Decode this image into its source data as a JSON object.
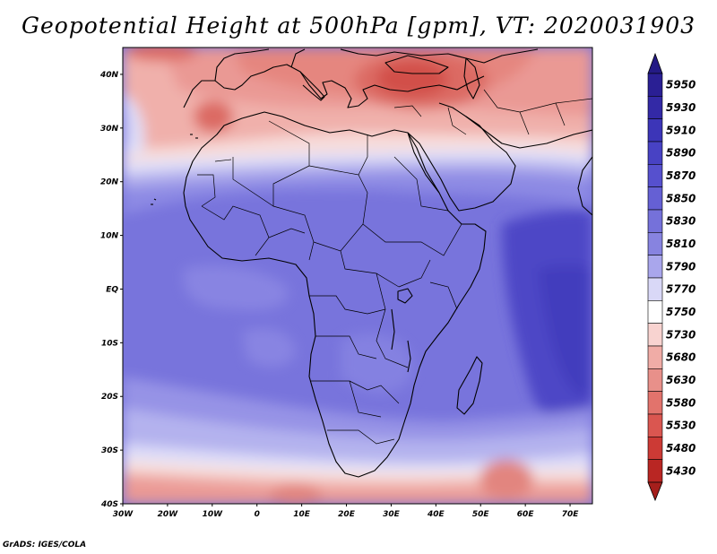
{
  "title": "Geopotential Height at 500hPa [gpm], VT: 2020031903",
  "credit": "GrADS: IGES/COLA",
  "map": {
    "variable": "Geopotential Height",
    "level": "500hPa",
    "units": "gpm",
    "valid_time": "2020031903",
    "region": "Africa and surrounding oceans",
    "lon_range": [
      -30,
      75
    ],
    "lat_range": [
      -40,
      45
    ]
  },
  "axes": {
    "x_ticks": [
      {
        "value": -30,
        "label": "30W"
      },
      {
        "value": -20,
        "label": "20W"
      },
      {
        "value": -10,
        "label": "10W"
      },
      {
        "value": 0,
        "label": "0"
      },
      {
        "value": 10,
        "label": "10E"
      },
      {
        "value": 20,
        "label": "20E"
      },
      {
        "value": 30,
        "label": "30E"
      },
      {
        "value": 40,
        "label": "40E"
      },
      {
        "value": 50,
        "label": "50E"
      },
      {
        "value": 60,
        "label": "60E"
      },
      {
        "value": 70,
        "label": "70E"
      }
    ],
    "y_ticks": [
      {
        "value": 40,
        "label": "40N"
      },
      {
        "value": 30,
        "label": "30N"
      },
      {
        "value": 20,
        "label": "20N"
      },
      {
        "value": 10,
        "label": "10N"
      },
      {
        "value": 0,
        "label": "EQ"
      },
      {
        "value": -10,
        "label": "10S"
      },
      {
        "value": -20,
        "label": "20S"
      },
      {
        "value": -30,
        "label": "30S"
      },
      {
        "value": -40,
        "label": "40S"
      }
    ]
  },
  "colorbar": {
    "levels": [
      {
        "label": "5950",
        "color": "#2a1f94"
      },
      {
        "label": "5930",
        "color": "#3329a6"
      },
      {
        "label": "5910",
        "color": "#3c35b8"
      },
      {
        "label": "5890",
        "color": "#4842c4"
      },
      {
        "label": "5870",
        "color": "#5650ce"
      },
      {
        "label": "5850",
        "color": "#6560d4"
      },
      {
        "label": "5830",
        "color": "#7571da"
      },
      {
        "label": "5810",
        "color": "#8783e0"
      },
      {
        "label": "5790",
        "color": "#a9a6ec"
      },
      {
        "label": "5770",
        "color": "#d9d8f7"
      },
      {
        "label": "5750",
        "color": "#ffffff"
      },
      {
        "label": "5730",
        "color": "#f8d3d0"
      },
      {
        "label": "5680",
        "color": "#f0aca6"
      },
      {
        "label": "5630",
        "color": "#e8908a"
      },
      {
        "label": "5580",
        "color": "#e2736c"
      },
      {
        "label": "5530",
        "color": "#da5650"
      },
      {
        "label": "5480",
        "color": "#cc3a35"
      },
      {
        "label": "5430",
        "color": "#b92623"
      }
    ],
    "extend_top_color": "#241a85",
    "extend_bottom_color": "#a51f1c"
  }
}
